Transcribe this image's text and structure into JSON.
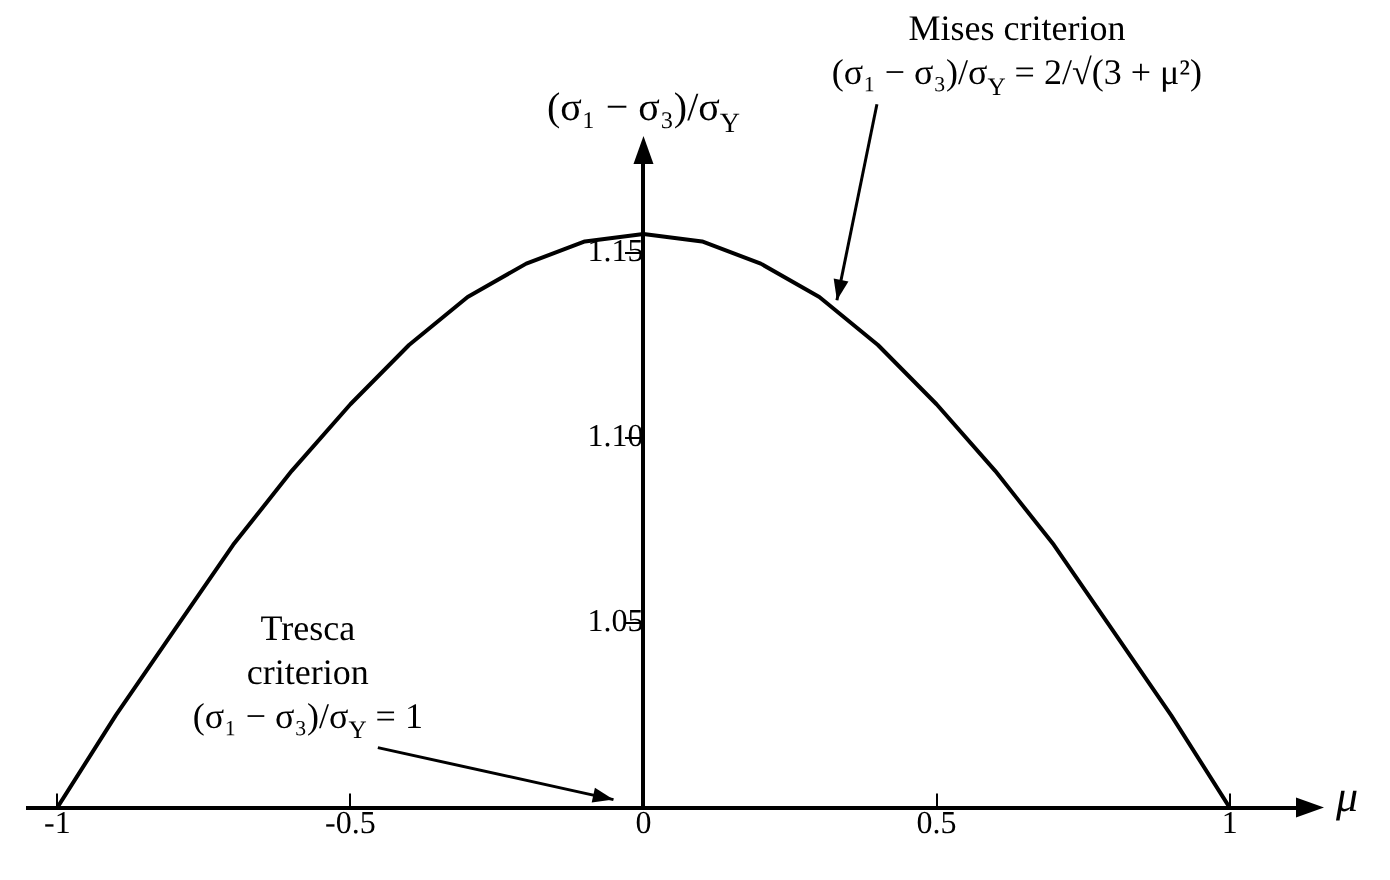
{
  "chart_data": {
    "type": "line",
    "xlabel": "μ",
    "ylabel": "(σ₁ − σ₃)/σ$_{Y}$",
    "x": [
      -1,
      -0.9,
      -0.8,
      -0.7,
      -0.6,
      -0.5,
      -0.4,
      -0.3,
      -0.2,
      -0.1,
      0,
      0.1,
      0.2,
      0.3,
      0.4,
      0.5,
      0.6,
      0.7,
      0.8,
      0.9,
      1
    ],
    "series": [
      {
        "color": "#000000",
        "values": [
          1.0,
          1.025,
          1.048,
          1.071,
          1.091,
          1.109,
          1.125,
          1.138,
          1.147,
          1.153,
          1.155,
          1.153,
          1.147,
          1.138,
          1.125,
          1.109,
          1.091,
          1.071,
          1.048,
          1.025,
          1.0
        ]
      }
    ],
    "xlim": [
      -1.05,
      1.12
    ],
    "ylim": [
      1,
      1.175
    ],
    "xticks": [
      -1,
      -0.5,
      0,
      0.5,
      1
    ],
    "yticks": [
      1.05,
      {
        "value": 1.1,
        "label": "1.10"
      },
      1.15
    ],
    "annotations": [
      "Tresca\ncriterion\n(σ₁ − σ₃)/σ$_{Y}$ = 1",
      {
        "text": "Mises criterion\n(σ₁ − σ₃)/σ$_{Y}$ = 2/√(3 + μ²)",
        "x": 0.33,
        "y": 1.136
      }
    ],
    "grid": false,
    "legend": false,
    "marker": "none",
    "line_style": "solid"
  }
}
